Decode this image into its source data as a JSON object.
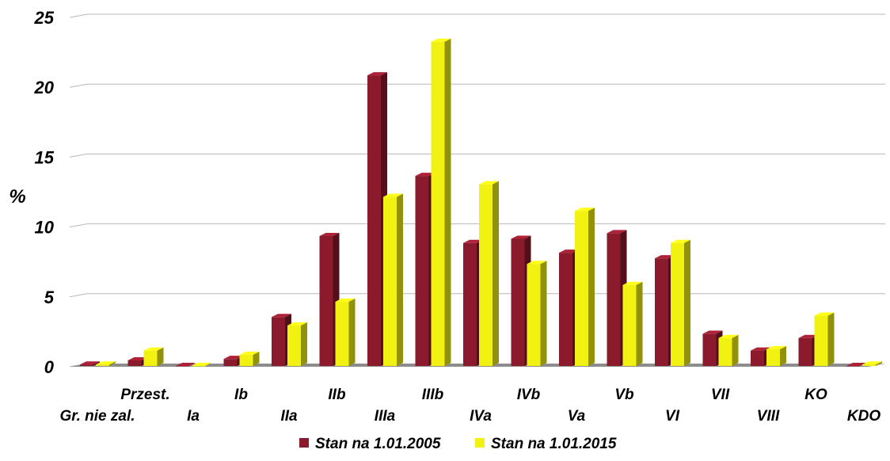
{
  "chart_data": {
    "type": "bar",
    "ylabel": "%",
    "ylim": [
      0,
      25
    ],
    "yticks": [
      "0",
      "5",
      "10",
      "15",
      "20",
      "25"
    ],
    "grid": true,
    "legend_position": "bottom",
    "categories": [
      "Gr. nie zal.",
      "Przest.",
      "Ia",
      "Ib",
      "IIa",
      "IIb",
      "IIIa",
      "IIIb",
      "IVa",
      "IVb",
      "Va",
      "Vb",
      "VI",
      "VII",
      "VIII",
      "KO",
      "KDO"
    ],
    "series": [
      {
        "name": "Stan na 1.01.2005",
        "color": "#8b1a2c",
        "values": [
          0.1,
          0.4,
          0.0,
          0.5,
          3.5,
          9.3,
          20.8,
          13.6,
          8.8,
          9.1,
          8.1,
          9.5,
          7.7,
          2.3,
          1.1,
          2.0,
          0.0
        ]
      },
      {
        "name": "Stan na 1.01.2015",
        "color": "#f2f212",
        "values": [
          0.1,
          1.1,
          0.0,
          0.8,
          2.9,
          4.6,
          12.1,
          23.2,
          13.0,
          7.3,
          11.1,
          5.8,
          8.8,
          2.0,
          1.2,
          3.6,
          0.1
        ]
      }
    ]
  }
}
